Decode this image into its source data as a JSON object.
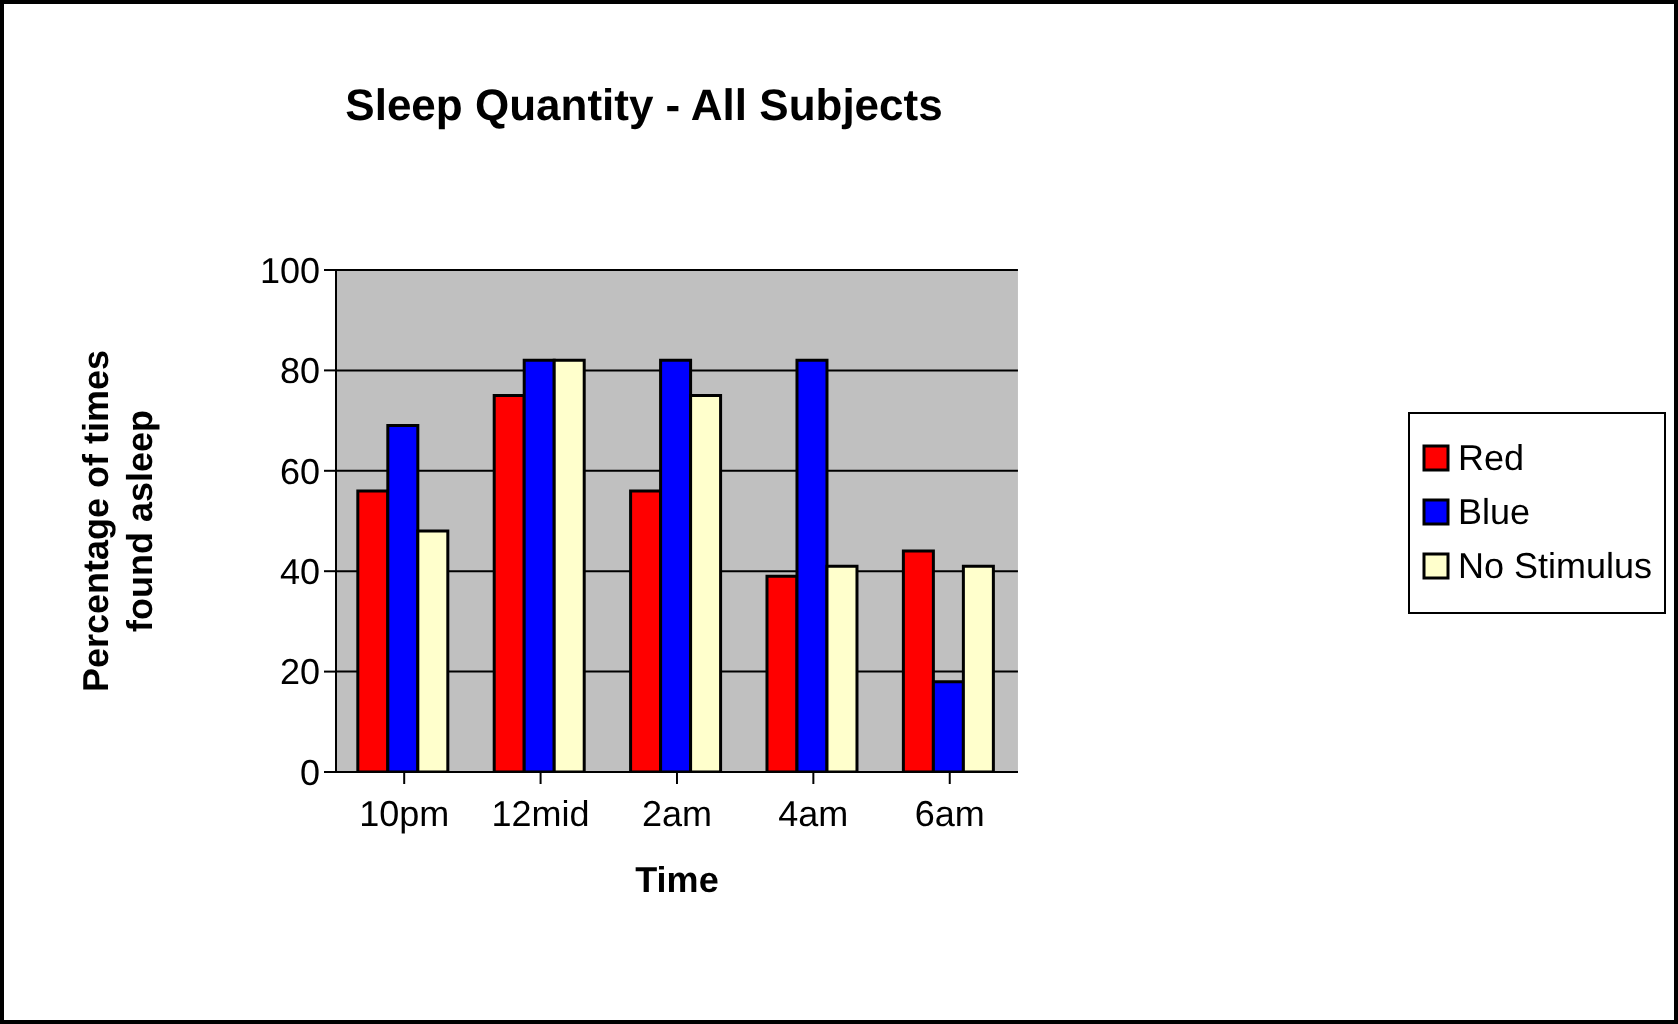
{
  "chart_data": {
    "type": "bar",
    "title": "Sleep Quantity - All Subjects",
    "xlabel": "Time",
    "ylabel": "Percentage of times found asleep",
    "categories": [
      "10pm",
      "12mid",
      "2am",
      "4am",
      "6am"
    ],
    "series": [
      {
        "name": "Red",
        "color": "#ff0000",
        "values": [
          56,
          75,
          56,
          39,
          44
        ]
      },
      {
        "name": "Blue",
        "color": "#0000ff",
        "values": [
          69,
          82,
          82,
          82,
          18
        ]
      },
      {
        "name": "No Stimulus",
        "color": "#ffffcc",
        "values": [
          48,
          82,
          75,
          41,
          41
        ]
      }
    ],
    "ylim": [
      0,
      100
    ],
    "yticks": [
      0,
      20,
      40,
      60,
      80,
      100
    ],
    "grid": "y",
    "legend": "right"
  }
}
